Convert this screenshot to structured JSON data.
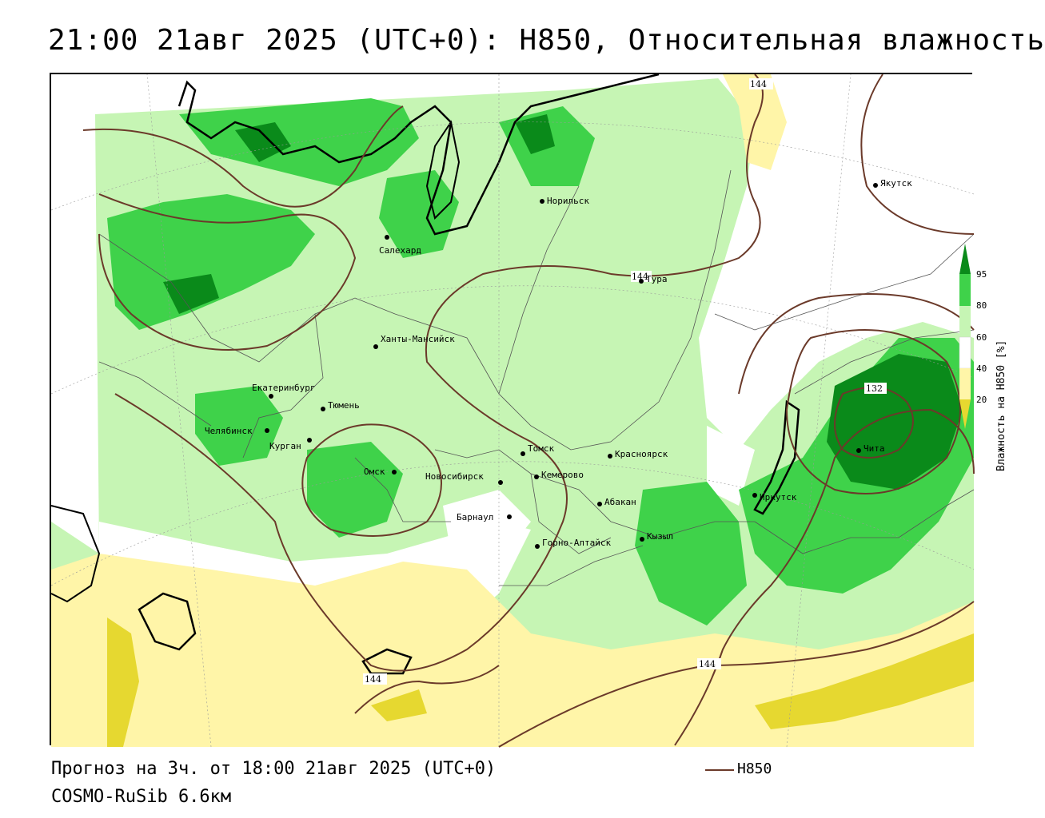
{
  "title": "21:00 21авг 2025 (UTC+0): H850, Относительная влажность",
  "footer": {
    "forecast": "Прогноз на 3ч. от 18:00 21авг 2025 (UTC+0)",
    "model": "COSMO-RuSib 6.6км",
    "contour_legend": "H850"
  },
  "legend": {
    "title": "Влажность на H850 [%]",
    "ticks": [
      "95",
      "80",
      "60",
      "40",
      "20"
    ]
  },
  "colors": {
    "contour": "#6b3a2a",
    "rh_95_plus": "#0a8a1a",
    "rh_80_95": "#3fd24a",
    "rh_60_80": "#c6f5b4",
    "rh_40_60": "#ffffff",
    "rh_20_40": "#fff5a8",
    "rh_below_20": "#e6d830"
  },
  "cities": [
    {
      "name": "Якутск"
    },
    {
      "name": "Норильск"
    },
    {
      "name": "Салехард"
    },
    {
      "name": "Тура"
    },
    {
      "name": "Ханты-Мансийск"
    },
    {
      "name": "Екатеринбург"
    },
    {
      "name": "Тюмень"
    },
    {
      "name": "Челябинск"
    },
    {
      "name": "Курган"
    },
    {
      "name": "Омск"
    },
    {
      "name": "Новосибирск"
    },
    {
      "name": "Томск"
    },
    {
      "name": "Кемерово"
    },
    {
      "name": "Красноярск"
    },
    {
      "name": "Абакан"
    },
    {
      "name": "Барнаул"
    },
    {
      "name": "Горно-Алтайск"
    },
    {
      "name": "Кызыл"
    },
    {
      "name": "Иркутск"
    },
    {
      "name": "Чита"
    }
  ],
  "contour_labels": [
    "144",
    "144",
    "132",
    "144",
    "144"
  ]
}
